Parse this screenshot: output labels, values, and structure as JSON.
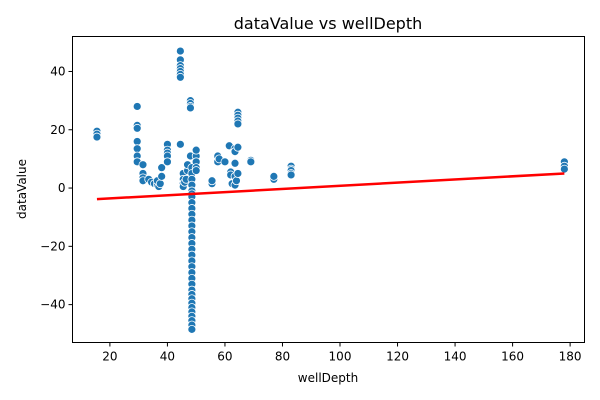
{
  "chart_data": {
    "type": "scatter",
    "title": "dataValue vs wellDepth",
    "xlabel": "wellDepth",
    "ylabel": "dataValue",
    "xlim": [
      7,
      185
    ],
    "ylim": [
      -53,
      52
    ],
    "xticks": [
      20,
      40,
      60,
      80,
      100,
      120,
      140,
      160,
      180
    ],
    "yticks": [
      -40,
      -20,
      0,
      20,
      40
    ],
    "grid": false,
    "legend": "none",
    "colors": {
      "points": "#1f77b4",
      "point_edge": "#ffffff",
      "trend": "#ff0000"
    },
    "series": [
      {
        "type": "scatter",
        "points": [
          [
            15.5,
            19.5
          ],
          [
            15.5,
            18.5
          ],
          [
            15.5,
            17.5
          ],
          [
            29.5,
            28
          ],
          [
            29.5,
            21.5
          ],
          [
            29.5,
            20.5
          ],
          [
            29.5,
            16
          ],
          [
            29.5,
            13.5
          ],
          [
            29.5,
            11
          ],
          [
            29.5,
            9
          ],
          [
            31.5,
            8
          ],
          [
            31.5,
            5
          ],
          [
            31.5,
            3.5
          ],
          [
            31.5,
            2.5
          ],
          [
            33.5,
            3
          ],
          [
            34.5,
            2
          ],
          [
            35.5,
            1.5
          ],
          [
            36.5,
            1
          ],
          [
            36.5,
            2.5
          ],
          [
            37,
            0.5
          ],
          [
            37.5,
            1.5
          ],
          [
            38,
            4
          ],
          [
            38,
            7
          ],
          [
            40,
            15
          ],
          [
            40,
            13
          ],
          [
            40,
            12
          ],
          [
            40,
            11
          ],
          [
            40,
            9
          ],
          [
            44.5,
            47
          ],
          [
            44.5,
            44
          ],
          [
            44.5,
            42
          ],
          [
            44.5,
            41
          ],
          [
            44.5,
            40
          ],
          [
            44.5,
            39
          ],
          [
            44.5,
            38
          ],
          [
            44.5,
            15
          ],
          [
            45.5,
            5
          ],
          [
            45.5,
            3
          ],
          [
            45.5,
            1.5
          ],
          [
            45.5,
            0.5
          ],
          [
            46,
            2
          ],
          [
            46.5,
            3
          ],
          [
            47,
            6
          ],
          [
            47,
            8
          ],
          [
            48,
            30
          ],
          [
            48,
            29
          ],
          [
            48,
            28
          ],
          [
            48,
            27.5
          ],
          [
            48,
            11
          ],
          [
            48.5,
            7
          ],
          [
            48.5,
            5
          ],
          [
            48.5,
            3
          ],
          [
            48.5,
            1
          ],
          [
            48.5,
            -1
          ],
          [
            48.5,
            -2
          ],
          [
            48.5,
            -3
          ],
          [
            48.5,
            -5
          ],
          [
            48.5,
            -7
          ],
          [
            48.5,
            -9
          ],
          [
            48.5,
            -11
          ],
          [
            48.5,
            -13
          ],
          [
            48.5,
            -15
          ],
          [
            48.5,
            -17
          ],
          [
            48.5,
            -19
          ],
          [
            48.5,
            -21
          ],
          [
            48.5,
            -23
          ],
          [
            48.5,
            -25
          ],
          [
            48.5,
            -27
          ],
          [
            48.5,
            -29
          ],
          [
            48.5,
            -31
          ],
          [
            48.5,
            -33
          ],
          [
            48.5,
            -35
          ],
          [
            48.5,
            -36.5
          ],
          [
            48.5,
            -38
          ],
          [
            48.5,
            -39.5
          ],
          [
            48.5,
            -41
          ],
          [
            48.5,
            -42.5
          ],
          [
            48.5,
            -44
          ],
          [
            48.5,
            -45.5
          ],
          [
            48.5,
            -47
          ],
          [
            48.5,
            -48.5
          ],
          [
            50,
            11
          ],
          [
            50,
            9
          ],
          [
            50,
            7
          ],
          [
            50,
            6
          ],
          [
            50,
            13
          ],
          [
            55.5,
            1.5
          ],
          [
            55.5,
            2.5
          ],
          [
            57.5,
            9
          ],
          [
            57.5,
            11
          ],
          [
            58,
            10
          ],
          [
            60,
            9
          ],
          [
            61.5,
            14.5
          ],
          [
            62,
            5.5
          ],
          [
            62,
            4.5
          ],
          [
            62.5,
            1.5
          ],
          [
            63.5,
            13.5
          ],
          [
            63.5,
            12.5
          ],
          [
            63.5,
            8.5
          ],
          [
            63.5,
            4
          ],
          [
            63.5,
            1
          ],
          [
            64,
            2.5
          ],
          [
            64.5,
            26
          ],
          [
            64.5,
            25
          ],
          [
            64.5,
            24
          ],
          [
            64.5,
            23
          ],
          [
            64.5,
            22
          ],
          [
            64.5,
            14
          ],
          [
            64.5,
            5
          ],
          [
            69,
            9.5
          ],
          [
            69,
            9
          ],
          [
            77,
            3
          ],
          [
            77,
            4
          ],
          [
            83,
            7.5
          ],
          [
            83,
            6.5
          ],
          [
            83,
            6
          ],
          [
            83,
            5
          ],
          [
            83,
            4.5
          ],
          [
            178,
            9
          ],
          [
            178,
            7.5
          ],
          [
            178,
            6.5
          ]
        ]
      },
      {
        "type": "line",
        "points": [
          [
            15.5,
            -3.8
          ],
          [
            178,
            5
          ]
        ]
      }
    ]
  }
}
